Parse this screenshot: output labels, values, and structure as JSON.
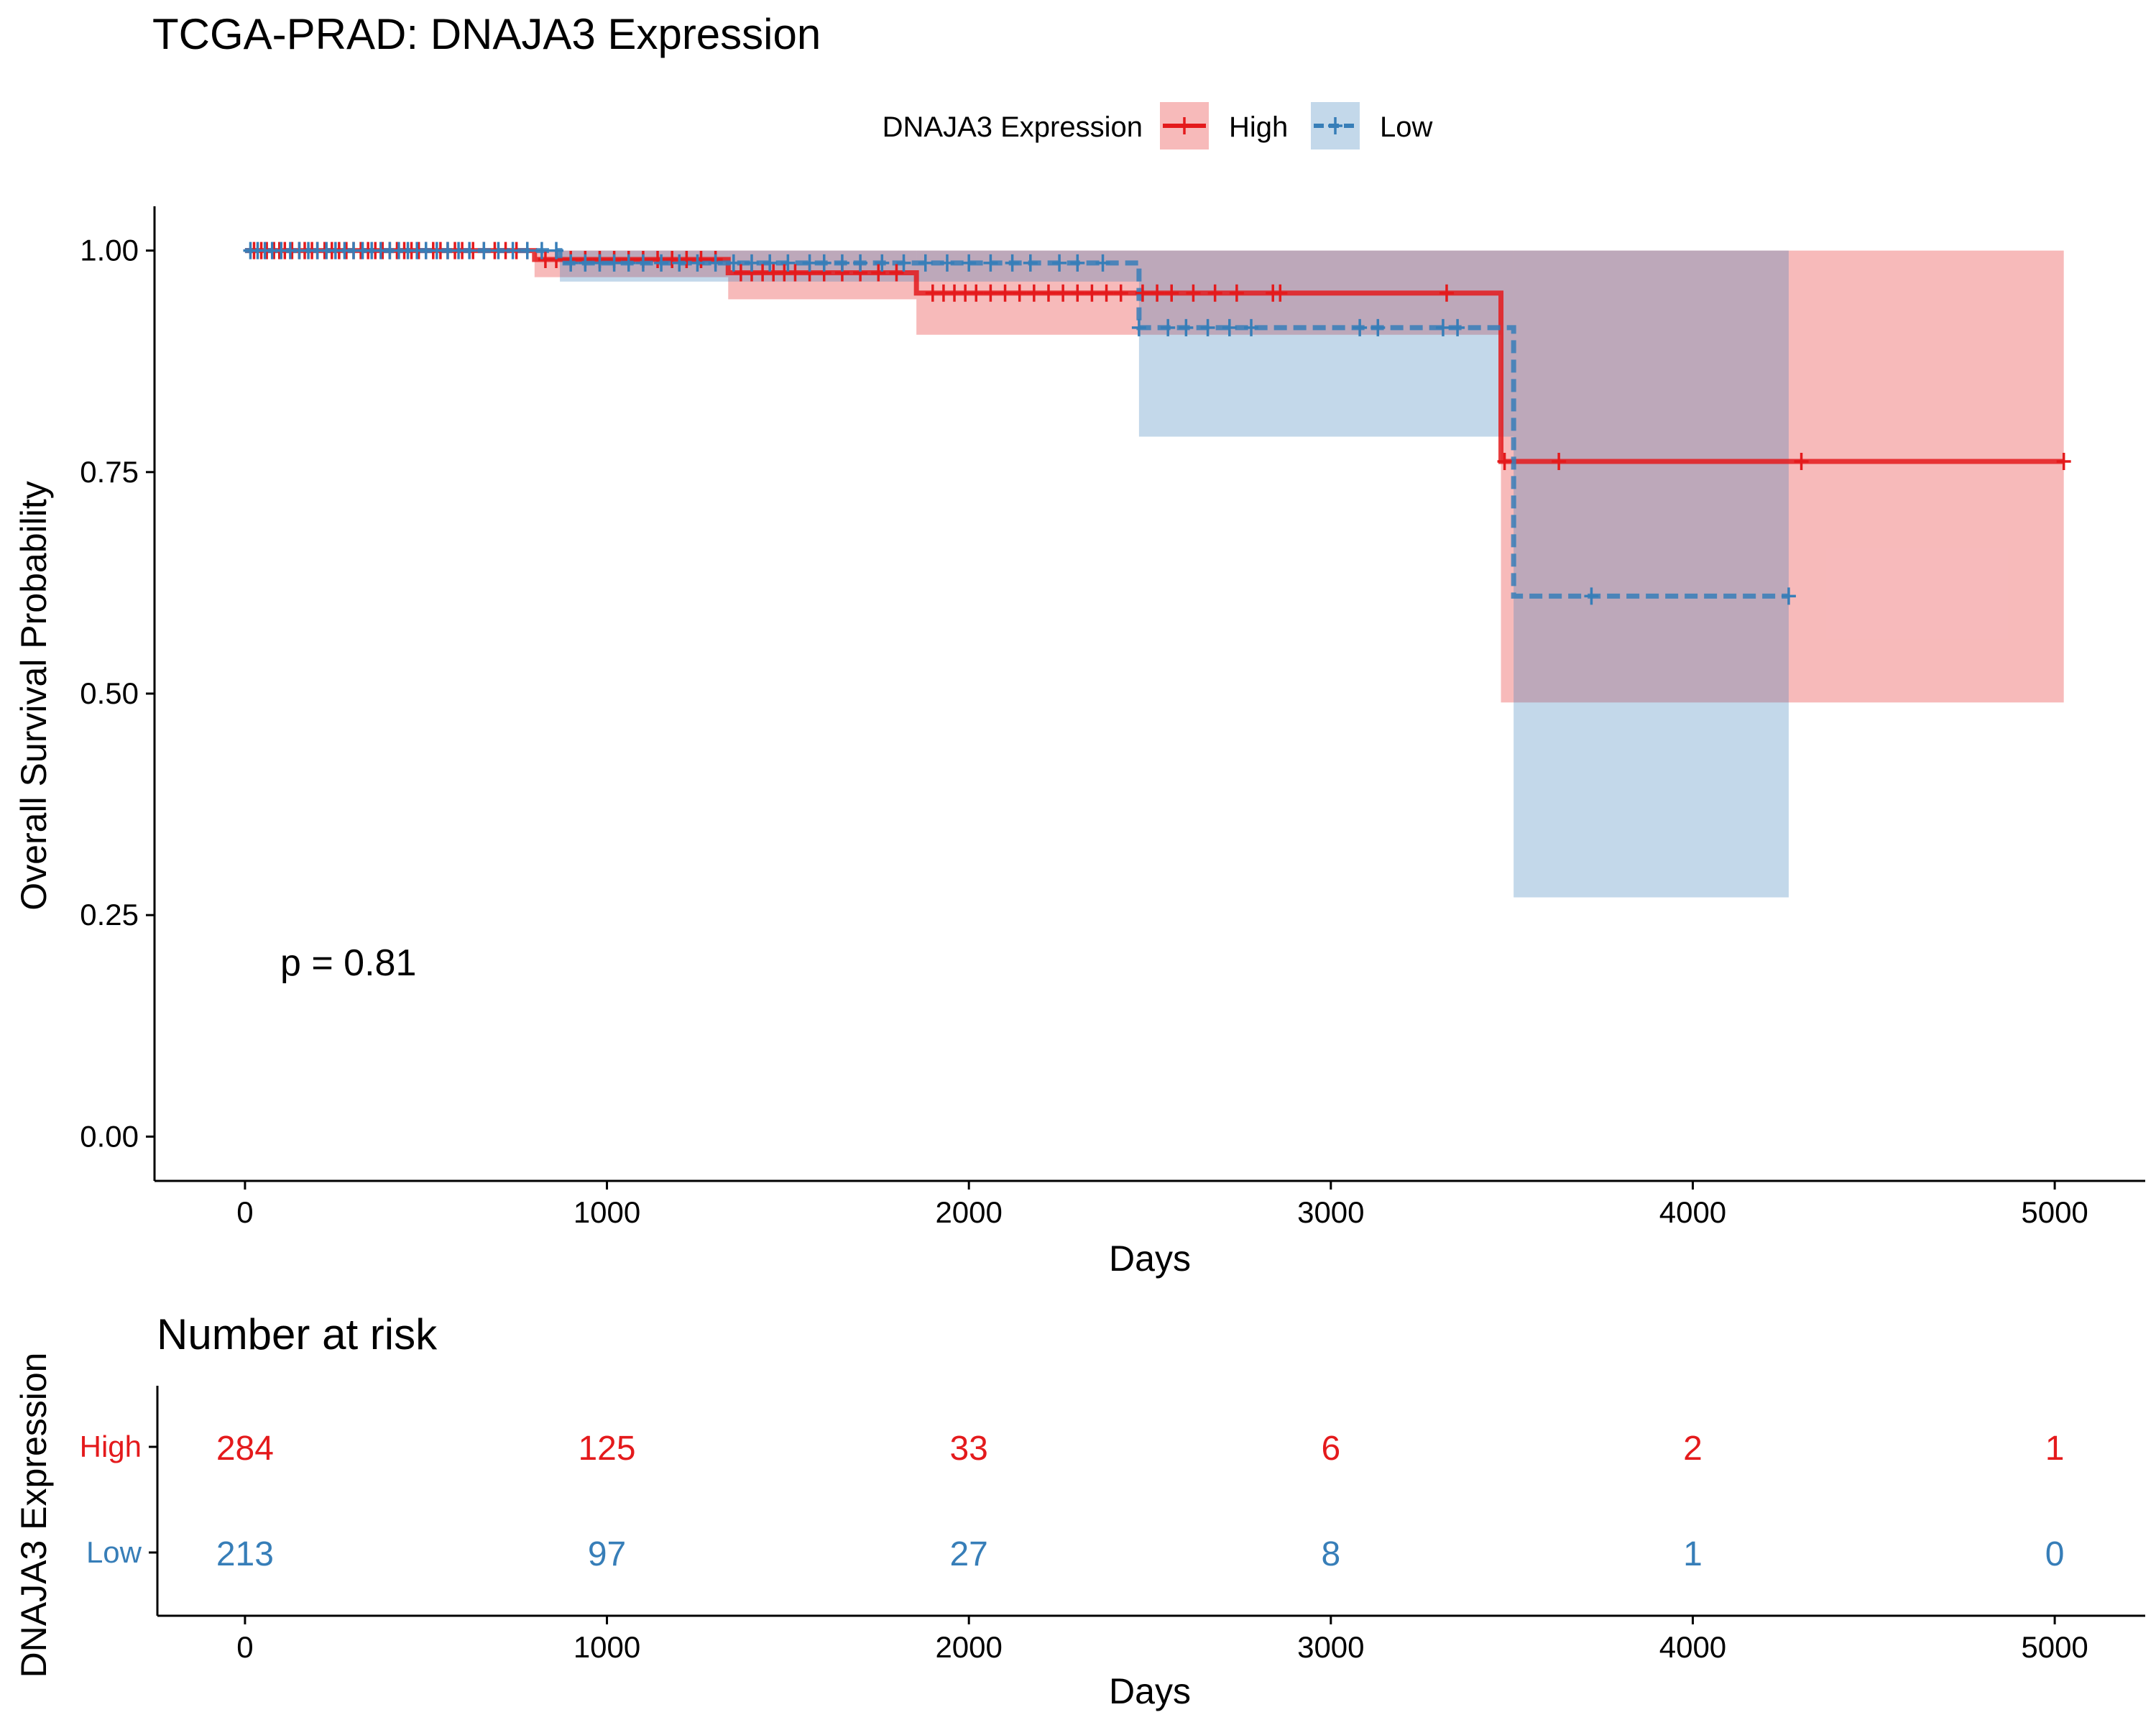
{
  "chart_data": {
    "type": "line",
    "title": "TCGA-PRAD: DNAJA3 Expression",
    "xlabel": "Days",
    "ylabel": "Overall Survival Probability",
    "xlim": [
      -250,
      5250
    ],
    "ylim": [
      -0.05,
      1.05
    ],
    "xticks": [
      0,
      1000,
      2000,
      3000,
      4000,
      5000
    ],
    "yticks": [
      0.0,
      0.25,
      0.5,
      0.75,
      1.0
    ],
    "ytick_labels": [
      "0.00",
      "0.25",
      "0.50",
      "0.75",
      "1.00"
    ],
    "grid": false,
    "legend": {
      "title": "DNAJA3 Expression",
      "placement": "top"
    },
    "annotation": "p = 0.81",
    "series": [
      {
        "name": "High",
        "color": "#e41a1c",
        "dash": "solid",
        "steps": [
          [
            0,
            1.0
          ],
          [
            800,
            0.99
          ],
          [
            1335,
            0.975
          ],
          [
            1855,
            0.952
          ],
          [
            3470,
            0.762
          ],
          [
            5025,
            0.762
          ]
        ],
        "ci": [
          [
            0,
            1.0,
            1.0
          ],
          [
            800,
            0.97,
            1.0
          ],
          [
            1335,
            0.945,
            1.0
          ],
          [
            1855,
            0.905,
            1.0
          ],
          [
            3470,
            0.49,
            1.0
          ],
          [
            5025,
            0.49,
            1.0
          ]
        ],
        "censor": [
          25,
          45,
          60,
          80,
          95,
          110,
          130,
          150,
          165,
          185,
          200,
          220,
          240,
          260,
          280,
          300,
          320,
          340,
          360,
          380,
          400,
          420,
          440,
          460,
          480,
          500,
          520,
          540,
          560,
          580,
          600,
          630,
          660,
          690,
          720,
          750,
          780,
          830,
          860,
          900,
          940,
          980,
          1020,
          1060,
          1100,
          1140,
          1180,
          1220,
          1260,
          1300,
          1370,
          1400,
          1430,
          1460,
          1490,
          1520,
          1560,
          1600,
          1650,
          1700,
          1750,
          1800,
          1900,
          1930,
          1960,
          1990,
          2020,
          2060,
          2100,
          2140,
          2180,
          2220,
          2260,
          2300,
          2340,
          2380,
          2420,
          2480,
          2520,
          2560,
          2620,
          2680,
          2740,
          2840,
          2860,
          3320,
          3480,
          3630,
          4300,
          5025
        ]
      },
      {
        "name": "Low",
        "color": "#377eb8",
        "dash": "dashed",
        "steps": [
          [
            0,
            1.0
          ],
          [
            870,
            0.986
          ],
          [
            2470,
            0.913
          ],
          [
            3505,
            0.61
          ],
          [
            4265,
            0.61
          ]
        ],
        "ci": [
          [
            0,
            1.0,
            1.0
          ],
          [
            870,
            0.965,
            1.0
          ],
          [
            2470,
            0.79,
            1.0
          ],
          [
            3505,
            0.27,
            1.0
          ],
          [
            4265,
            0.27,
            1.0
          ]
        ],
        "censor": [
          15,
          35,
          55,
          75,
          100,
          125,
          150,
          175,
          200,
          225,
          250,
          275,
          300,
          325,
          350,
          375,
          400,
          425,
          450,
          475,
          500,
          530,
          560,
          590,
          620,
          660,
          700,
          740,
          780,
          820,
          860,
          900,
          940,
          980,
          1020,
          1060,
          1100,
          1150,
          1200,
          1250,
          1300,
          1350,
          1400,
          1450,
          1500,
          1560,
          1600,
          1650,
          1700,
          1760,
          1820,
          1880,
          1940,
          2000,
          2060,
          2120,
          2170,
          2250,
          2300,
          2370,
          2470,
          2550,
          2600,
          2660,
          2720,
          2780,
          3080,
          3130,
          3310,
          3350,
          3720,
          4265
        ]
      }
    ],
    "risk_table": {
      "title": "Number at risk",
      "ylabel": "DNAJA3 Expression",
      "xlabel": "Days",
      "times": [
        0,
        1000,
        2000,
        3000,
        4000,
        5000
      ],
      "rows": [
        {
          "name": "High",
          "color": "#e41a1c",
          "values": [
            284,
            125,
            33,
            6,
            2,
            1
          ]
        },
        {
          "name": "Low",
          "color": "#377eb8",
          "values": [
            213,
            97,
            27,
            8,
            1,
            0
          ]
        }
      ]
    }
  }
}
